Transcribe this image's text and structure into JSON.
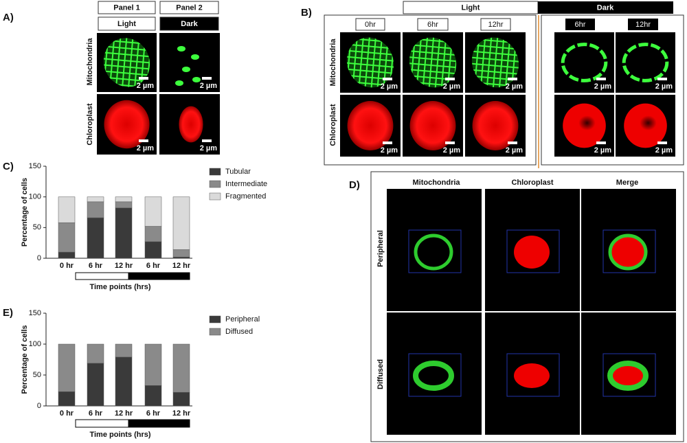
{
  "panel_labels": [
    "A)",
    "B)",
    "C)",
    "D)",
    "E)"
  ],
  "panel_a": {
    "headers": [
      "Panel 1",
      "Panel 2"
    ],
    "conditions": [
      "Light",
      "Dark"
    ],
    "rows": [
      "Mitochondria",
      "Chloroplast"
    ],
    "scale_bar": "2 µm"
  },
  "panel_b": {
    "conditions": [
      "Light",
      "Dark"
    ],
    "light_times": [
      "0hr",
      "6hr",
      "12hr"
    ],
    "dark_times": [
      "6hr",
      "12hr"
    ],
    "rows": [
      "Mitochondria",
      "Chloroplast"
    ],
    "scale_bar": "2 µm"
  },
  "panel_d": {
    "columns": [
      "Mitochondria",
      "Chloroplast",
      "Merge"
    ],
    "rows": [
      "Peripheral",
      "Diffused"
    ]
  },
  "chart_data": [
    {
      "type": "bar",
      "stacked": true,
      "ylabel": "Percentage of cells",
      "xlabel": "Time points (hrs)",
      "categories": [
        "0 hr",
        "6 hr",
        "12 hr",
        "6 hr",
        "12 hr"
      ],
      "series": [
        {
          "name": "Tubular",
          "color": "#3a3a3a",
          "values": [
            10,
            66,
            82,
            27,
            2
          ]
        },
        {
          "name": "Intermediate",
          "color": "#8a8a8a",
          "values": [
            48,
            26,
            10,
            25,
            12
          ]
        },
        {
          "name": "Fragmented",
          "color": "#dadada",
          "values": [
            42,
            8,
            8,
            48,
            86
          ]
        }
      ],
      "ylim": [
        0,
        150
      ],
      "yticks": [
        0,
        50,
        100,
        150
      ]
    },
    {
      "type": "bar",
      "stacked": true,
      "ylabel": "Percentage of cells",
      "xlabel": "Time points (hrs)",
      "categories": [
        "0 hr",
        "6 hr",
        "12 hr",
        "6 hr",
        "12 hr"
      ],
      "series": [
        {
          "name": "Peripheral",
          "color": "#3a3a3a",
          "values": [
            23,
            69,
            79,
            33,
            22
          ]
        },
        {
          "name": "Diffused",
          "color": "#8a8a8a",
          "values": [
            77,
            31,
            21,
            67,
            78
          ]
        }
      ],
      "ylim": [
        0,
        150
      ],
      "yticks": [
        0,
        50,
        100,
        150
      ]
    }
  ]
}
